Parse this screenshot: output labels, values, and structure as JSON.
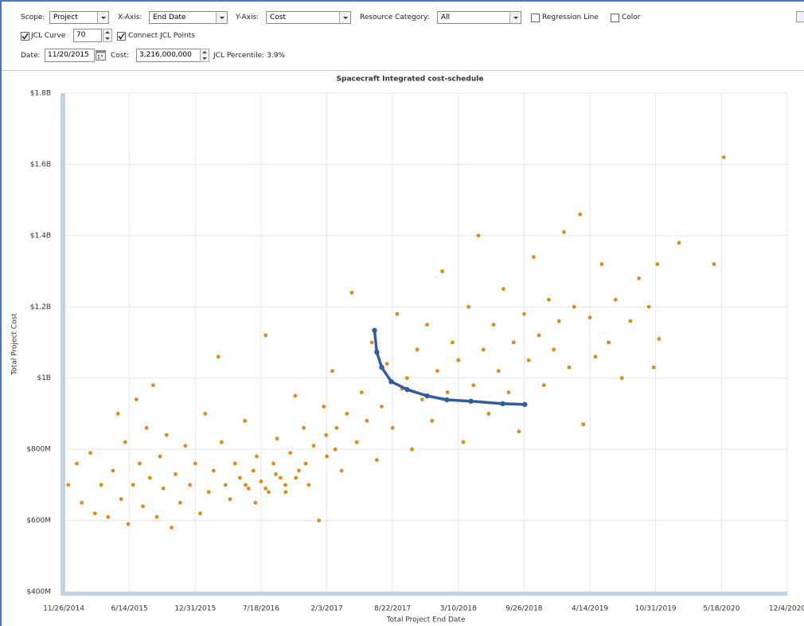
{
  "toolbar": {
    "scope": {
      "label": "Scope:",
      "value": "Project"
    },
    "x_axis": {
      "label": "X-Axis:",
      "value": "End Date"
    },
    "y_axis": {
      "label": "Y-Axis:",
      "value": "Cost"
    },
    "resource_category": {
      "label": "Resource Category:",
      "value": "All"
    },
    "regression_line": {
      "label": "Regression Line",
      "checked": false
    },
    "color": {
      "label": "Color",
      "checked": false
    },
    "jcl_curve": {
      "label": "JCL Curve",
      "value": "70",
      "checked": true
    },
    "connect_jcl_points": {
      "label": "Connect JCL Points",
      "checked": true
    },
    "date": {
      "label": "Date:",
      "value": "11/20/2015"
    },
    "cost": {
      "label": "Cost:",
      "value": "3,216,000,000"
    },
    "jcl_percentile": "JCL Percentile: 3.9%"
  },
  "chart_data": {
    "type": "scatter",
    "title": "Spacecraft Integrated cost-schedule",
    "x_label": "Total Project End Date",
    "y_label": "Total Project Cost",
    "xlim": [
      "11/26/2014",
      "12/4/2020"
    ],
    "xticks": [
      "11/26/2014",
      "6/14/2015",
      "12/31/2015",
      "7/18/2016",
      "2/3/2017",
      "8/22/2017",
      "3/10/2018",
      "9/26/2018",
      "4/14/2019",
      "10/31/2019",
      "5/18/2020",
      "12/4/2020"
    ],
    "ylim": [
      400000000,
      1800000000
    ],
    "yticks": [
      {
        "value": 400000000,
        "label": "$400M"
      },
      {
        "value": 600000000,
        "label": "$600M"
      },
      {
        "value": 800000000,
        "label": "$800M"
      },
      {
        "value": 1000000000,
        "label": "$1B"
      },
      {
        "value": 1200000000,
        "label": "$1.2B"
      },
      {
        "value": 1400000000,
        "label": "$1.4B"
      },
      {
        "value": 1600000000,
        "label": "$1.6B"
      },
      {
        "value": 1800000000,
        "label": "$1.8B"
      }
    ],
    "grid": true,
    "series": [
      {
        "color": "#e8890c",
        "line": false,
        "x": [
          "12/10/2014",
          "1/5/2015",
          "1/20/2015",
          "2/15/2015",
          "3/1/2015",
          "3/20/2015",
          "4/10/2015",
          "4/25/2015",
          "5/10/2015",
          "5/20/2015",
          "6/1/2015",
          "6/10/2015",
          "6/25/2015",
          "7/5/2015",
          "7/15/2015",
          "7/25/2015",
          "8/5/2015",
          "8/15/2015",
          "8/25/2015",
          "9/5/2015",
          "9/15/2015",
          "9/25/2015",
          "10/5/2015",
          "10/20/2015",
          "11/1/2015",
          "11/15/2015",
          "12/1/2015",
          "12/15/2015",
          "12/31/2015",
          "1/15/2016",
          "1/30/2016",
          "2/10/2016",
          "2/25/2016",
          "3/10/2016",
          "3/20/2016",
          "4/1/2016",
          "4/15/2016",
          "4/30/2016",
          "5/15/2016",
          "5/30/2016",
          "6/1/2016",
          "6/10/2016",
          "6/25/2016",
          "7/1/2016",
          "7/5/2016",
          "7/18/2016",
          "8/1/2016",
          "8/1/2016",
          "8/10/2016",
          "8/25/2016",
          "9/1/2016",
          "9/5/2016",
          "9/15/2016",
          "9/30/2016",
          "10/1/2016",
          "10/15/2016",
          "10/30/2016",
          "11/1/2016",
          "11/10/2016",
          "11/25/2016",
          "12/1/2016",
          "12/10/2016",
          "12/25/2016",
          "1/10/2017",
          "1/25/2017",
          "2/1/2017",
          "2/3/2017",
          "2/20/2017",
          "3/1/2017",
          "3/5/2017",
          "3/20/2017",
          "4/5/2017",
          "4/20/2017",
          "5/5/2017",
          "5/20/2017",
          "6/5/2017",
          "6/20/2017",
          "7/5/2017",
          "7/20/2017",
          "8/5/2017",
          "8/22/2017",
          "9/5/2017",
          "9/20/2017",
          "10/5/2017",
          "10/20/2017",
          "11/5/2017",
          "11/20/2017",
          "12/5/2017",
          "12/20/2017",
          "1/5/2018",
          "1/20/2018",
          "2/5/2018",
          "2/20/2018",
          "3/10/2018",
          "3/25/2018",
          "4/10/2018",
          "4/25/2018",
          "5/10/2018",
          "5/25/2018",
          "6/10/2018",
          "6/25/2018",
          "7/10/2018",
          "7/25/2018",
          "8/10/2018",
          "8/25/2018",
          "9/10/2018",
          "9/26/2018",
          "10/10/2018",
          "10/25/2018",
          "11/10/2018",
          "11/25/2018",
          "12/10/2018",
          "12/25/2018",
          "1/10/2019",
          "1/25/2019",
          "2/10/2019",
          "2/25/2019",
          "3/15/2019",
          "3/25/2019",
          "4/14/2019",
          "5/1/2019",
          "5/20/2019",
          "6/10/2019",
          "7/1/2019",
          "7/20/2019",
          "8/15/2019",
          "9/10/2019",
          "10/10/2019",
          "10/25/2019",
          "11/5/2019",
          "11/10/2019",
          "1/10/2020",
          "4/25/2020",
          "5/25/2020"
        ],
        "values": [
          700000000,
          760000000,
          650000000,
          790000000,
          620000000,
          700000000,
          610000000,
          740000000,
          900000000,
          660000000,
          820000000,
          590000000,
          700000000,
          940000000,
          760000000,
          640000000,
          860000000,
          720000000,
          980000000,
          610000000,
          780000000,
          690000000,
          840000000,
          580000000,
          730000000,
          650000000,
          810000000,
          700000000,
          760000000,
          620000000,
          900000000,
          680000000,
          740000000,
          1060000000,
          820000000,
          700000000,
          660000000,
          760000000,
          720000000,
          880000000,
          700000000,
          690000000,
          740000000,
          650000000,
          780000000,
          710000000,
          1120000000,
          690000000,
          680000000,
          760000000,
          730000000,
          830000000,
          720000000,
          700000000,
          680000000,
          790000000,
          950000000,
          720000000,
          740000000,
          860000000,
          760000000,
          700000000,
          810000000,
          600000000,
          920000000,
          840000000,
          780000000,
          1020000000,
          800000000,
          860000000,
          740000000,
          900000000,
          1240000000,
          820000000,
          960000000,
          880000000,
          1100000000,
          770000000,
          920000000,
          1040000000,
          860000000,
          1180000000,
          970000000,
          1000000000,
          800000000,
          1080000000,
          940000000,
          1150000000,
          880000000,
          1020000000,
          1300000000,
          960000000,
          1100000000,
          1050000000,
          820000000,
          1200000000,
          980000000,
          1400000000,
          1080000000,
          900000000,
          1150000000,
          1020000000,
          1250000000,
          960000000,
          1100000000,
          850000000,
          1180000000,
          1050000000,
          1340000000,
          1120000000,
          980000000,
          1220000000,
          1080000000,
          1160000000,
          1410000000,
          1030000000,
          1200000000,
          1460000000,
          870000000,
          1170000000,
          1060000000,
          1320000000,
          1100000000,
          1220000000,
          1000000000,
          1160000000,
          1280000000,
          1200000000,
          1030000000,
          1320000000,
          1110000000,
          1380000000,
          1320000000,
          1620000000
        ]
      },
      {
        "color": "#2e5da6",
        "line": true,
        "x": [
          "6/28/2017",
          "7/5/2017",
          "7/20/2017",
          "8/18/2017",
          "10/5/2017",
          "12/5/2017",
          "2/3/2018",
          "4/17/2018",
          "7/23/2018",
          "9/28/2018"
        ],
        "values": [
          1134000000,
          1073000000,
          1030000000,
          990000000,
          968000000,
          950000000,
          939000000,
          935000000,
          928000000,
          926000000
        ]
      }
    ]
  }
}
